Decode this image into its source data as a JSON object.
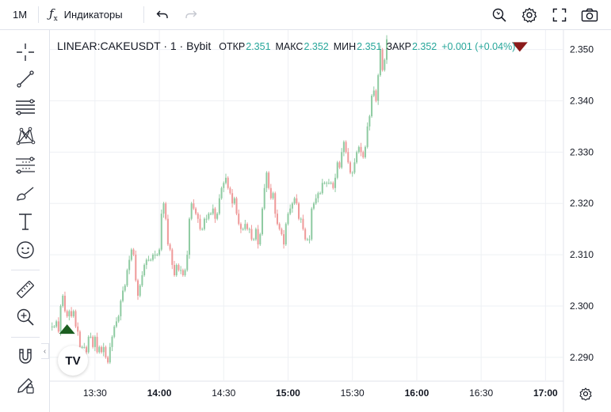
{
  "toolbar": {
    "interval": "1M",
    "indicators_label": "Индикаторы"
  },
  "legend": {
    "symbol": "LINEAR:CAKEUSDT · 1 · Bybit",
    "open_label": "ОТКР",
    "open_value": "2.351",
    "high_label": "МАКС",
    "high_value": "2.352",
    "low_label": "МИН",
    "low_value": "2.351",
    "close_label": "ЗАКР",
    "close_value": "2.352",
    "change": "+0.001 (+0.04%)"
  },
  "colors": {
    "up": "#8fcba2",
    "down": "#ef9a9a",
    "buy_marker": "#1b5e20",
    "sell_marker": "#8b1a1a",
    "grid": "#eef0f4",
    "axis_text": "#131722"
  },
  "logo_text": "TV",
  "chart_data": {
    "type": "candlestick",
    "title": "LINEAR:CAKEUSDT · 1 · Bybit",
    "xlabel": "",
    "ylabel": "",
    "x_ticks": [
      "13:30",
      "14:00",
      "14:30",
      "15:00",
      "15:30",
      "16:00",
      "16:30",
      "17:00"
    ],
    "x_tick_minutes": [
      810,
      840,
      870,
      900,
      930,
      960,
      990,
      1020
    ],
    "y_ticks": [
      "2.290",
      "2.300",
      "2.310",
      "2.320",
      "2.330",
      "2.340",
      "2.350"
    ],
    "ylim": [
      2.2855,
      2.3538
    ],
    "xlim_minutes": [
      789,
      1028
    ],
    "start_minute": 790,
    "grid": true,
    "close_series": [
      2.296,
      2.296,
      2.297,
      2.295,
      2.3,
      2.302,
      2.299,
      2.298,
      2.299,
      2.298,
      2.299,
      2.296,
      2.295,
      2.292,
      2.292,
      2.292,
      2.291,
      2.294,
      2.294,
      2.292,
      2.294,
      2.291,
      2.292,
      2.291,
      2.292,
      2.29,
      2.289,
      2.292,
      2.294,
      2.296,
      2.297,
      2.298,
      2.301,
      2.303,
      2.304,
      2.307,
      2.309,
      2.311,
      2.31,
      2.305,
      2.302,
      2.304,
      2.306,
      2.308,
      2.309,
      2.309,
      2.309,
      2.31,
      2.31,
      2.31,
      2.311,
      2.318,
      2.32,
      2.317,
      2.312,
      2.311,
      2.308,
      2.306,
      2.308,
      2.307,
      2.307,
      2.306,
      2.307,
      2.31,
      2.317,
      2.32,
      2.319,
      2.318,
      2.317,
      2.315,
      2.315,
      2.317,
      2.317,
      2.318,
      2.318,
      2.319,
      2.317,
      2.318,
      2.321,
      2.323,
      2.324,
      2.325,
      2.323,
      2.322,
      2.32,
      2.321,
      2.318,
      2.316,
      2.315,
      2.315,
      2.316,
      2.315,
      2.315,
      2.313,
      2.313,
      2.315,
      2.312,
      2.314,
      2.319,
      2.323,
      2.326,
      2.323,
      2.321,
      2.322,
      2.318,
      2.316,
      2.315,
      2.314,
      2.312,
      2.316,
      2.318,
      2.319,
      2.32,
      2.321,
      2.32,
      2.317,
      2.317,
      2.315,
      2.313,
      2.313,
      2.313,
      2.319,
      2.32,
      2.321,
      2.322,
      2.322,
      2.324,
      2.324,
      2.324,
      2.324,
      2.324,
      2.323,
      2.325,
      2.328,
      2.327,
      2.33,
      2.332,
      2.33,
      2.328,
      2.326,
      2.326,
      2.328,
      2.33,
      2.331,
      2.33,
      2.329,
      2.331,
      2.335,
      2.337,
      2.341,
      2.342,
      2.34,
      2.345,
      2.35,
      2.346,
      2.348,
      2.352
    ],
    "markers": [
      {
        "type": "buy",
        "minute": 797,
        "price": 2.2955
      },
      {
        "type": "sell",
        "minute": 1008,
        "price": 2.3505
      }
    ]
  }
}
